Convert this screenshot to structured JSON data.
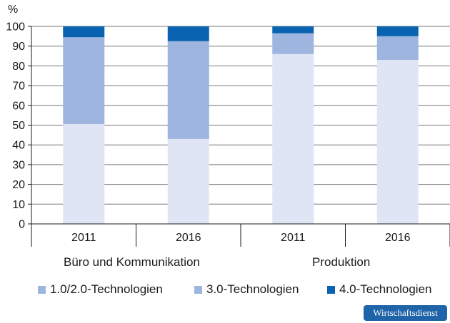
{
  "chart_data": {
    "type": "bar",
    "stacked": true,
    "yunit": "%",
    "ylim": [
      0,
      100
    ],
    "yticks": [
      0,
      10,
      20,
      30,
      40,
      50,
      60,
      70,
      80,
      90,
      100
    ],
    "categories": [
      "2011",
      "2016",
      "2011",
      "2016"
    ],
    "groups": [
      {
        "label": "Büro und Kommunikation",
        "categories": [
          0,
          1
        ]
      },
      {
        "label": "Produktion",
        "categories": [
          2,
          3
        ]
      }
    ],
    "series": [
      {
        "name": "1.0/2.0-Technologien",
        "color": "#dfe5f4",
        "values": [
          50.5,
          43,
          86,
          83
        ]
      },
      {
        "name": "3.0-Technologien",
        "color": "#9db5df",
        "values": [
          44,
          49.5,
          10.5,
          12
        ]
      },
      {
        "name": "4.0-Technologien",
        "color": "#0a63b0",
        "values": [
          5.5,
          7.5,
          3.5,
          5
        ]
      }
    ]
  },
  "legend_swatch_color": "#9db5df",
  "source_badge": "Wirtschaftsdienst"
}
